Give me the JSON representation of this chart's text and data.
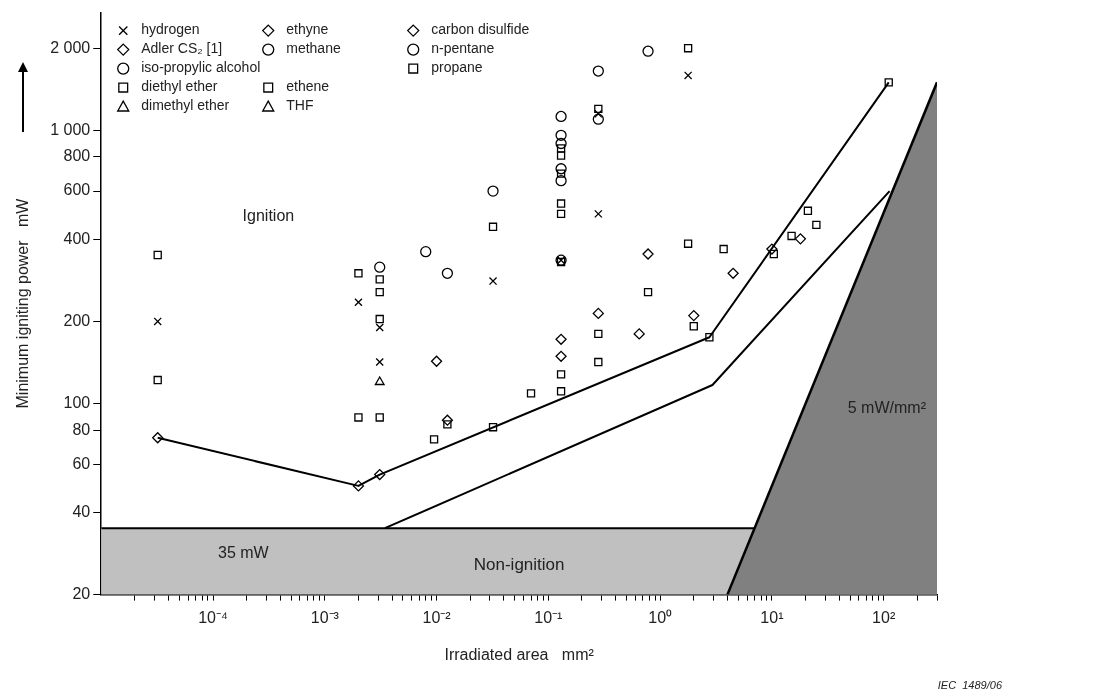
{
  "chart_data": {
    "type": "scatter",
    "xlabel": "Irradiated area   mm²",
    "ylabel": "Minimum igniting power   mW",
    "log": "xy",
    "grid": false,
    "legend": "top left",
    "xlim": [
      1e-05,
      300
    ],
    "ylim": [
      20,
      2700
    ],
    "xticks": [
      {
        "value": 2e-05,
        "label": null
      },
      {
        "value": 3e-05,
        "label": null
      },
      {
        "value": 4e-05,
        "label": null
      },
      {
        "value": 5e-05,
        "label": null
      },
      {
        "value": 6e-05,
        "label": null
      },
      {
        "value": 7e-05,
        "label": null
      },
      {
        "value": 8e-05,
        "label": null
      },
      {
        "value": 9e-05,
        "label": null
      },
      {
        "value": 0.0001,
        "label": "10⁻⁴"
      },
      {
        "value": 0.0002,
        "label": null
      },
      {
        "value": 0.0003,
        "label": null
      },
      {
        "value": 0.0004,
        "label": null
      },
      {
        "value": 0.0005,
        "label": null
      },
      {
        "value": 0.0006,
        "label": null
      },
      {
        "value": 0.0007,
        "label": null
      },
      {
        "value": 0.0008,
        "label": null
      },
      {
        "value": 0.0009,
        "label": null
      },
      {
        "value": 0.001,
        "label": "10⁻³"
      },
      {
        "value": 0.002,
        "label": null
      },
      {
        "value": 0.003,
        "label": null
      },
      {
        "value": 0.004,
        "label": null
      },
      {
        "value": 0.005,
        "label": null
      },
      {
        "value": 0.006,
        "label": null
      },
      {
        "value": 0.007,
        "label": null
      },
      {
        "value": 0.008,
        "label": null
      },
      {
        "value": 0.009,
        "label": null
      },
      {
        "value": 0.01,
        "label": "10⁻²"
      },
      {
        "value": 0.02,
        "label": null
      },
      {
        "value": 0.03,
        "label": null
      },
      {
        "value": 0.04,
        "label": null
      },
      {
        "value": 0.05,
        "label": null
      },
      {
        "value": 0.06,
        "label": null
      },
      {
        "value": 0.07,
        "label": null
      },
      {
        "value": 0.08,
        "label": null
      },
      {
        "value": 0.09,
        "label": null
      },
      {
        "value": 0.1,
        "label": "10⁻¹"
      },
      {
        "value": 0.2,
        "label": null
      },
      {
        "value": 0.3,
        "label": null
      },
      {
        "value": 0.4,
        "label": null
      },
      {
        "value": 0.5,
        "label": null
      },
      {
        "value": 0.6,
        "label": null
      },
      {
        "value": 0.7,
        "label": null
      },
      {
        "value": 0.8,
        "label": null
      },
      {
        "value": 0.9,
        "label": null
      },
      {
        "value": 1,
        "label": "10⁰"
      },
      {
        "value": 2,
        "label": null
      },
      {
        "value": 3,
        "label": null
      },
      {
        "value": 4,
        "label": null
      },
      {
        "value": 5,
        "label": null
      },
      {
        "value": 6,
        "label": null
      },
      {
        "value": 7,
        "label": null
      },
      {
        "value": 8,
        "label": null
      },
      {
        "value": 9,
        "label": null
      },
      {
        "value": 10,
        "label": "10¹"
      },
      {
        "value": 20,
        "label": null
      },
      {
        "value": 30,
        "label": null
      },
      {
        "value": 40,
        "label": null
      },
      {
        "value": 50,
        "label": null
      },
      {
        "value": 60,
        "label": null
      },
      {
        "value": 70,
        "label": null
      },
      {
        "value": 80,
        "label": null
      },
      {
        "value": 90,
        "label": null
      },
      {
        "value": 100,
        "label": "10²"
      },
      {
        "value": 200,
        "label": null
      },
      {
        "value": 300,
        "label": null
      }
    ],
    "yticks": [
      20,
      40,
      60,
      80,
      100,
      200,
      400,
      600,
      800,
      {
        "value": 1000,
        "label": "1 000"
      },
      {
        "value": 2000,
        "label": "2 000"
      }
    ],
    "series": [
      {
        "name": "hydrogen",
        "color": "#000000",
        "marker": "cross",
        "x": [
          3.2e-05,
          0.002,
          0.0031,
          0.0031,
          0.032,
          0.13,
          0.28,
          0.28,
          1.78
        ],
        "values": [
          200,
          235,
          190,
          142,
          281,
          335,
          1150,
          495,
          1590
        ]
      },
      {
        "name": "Adler CS₂ [1]",
        "color": "#000000",
        "marker": "diamond",
        "x": [
          0.65,
          2.0,
          4.5,
          10,
          18
        ],
        "values": [
          180,
          210,
          300,
          368,
          401
        ]
      },
      {
        "name": "iso-propylic alcohol",
        "color": "#000000",
        "marker": "circle",
        "x": [
          0.13
        ],
        "values": [
          655
        ]
      },
      {
        "name": "diethyl ether",
        "color": "#000000",
        "marker": "square",
        "x": [
          3.2e-05,
          0.002,
          0.0031,
          0.0095,
          0.0125,
          0.032,
          0.07,
          0.13,
          0.13,
          0.28,
          0.28,
          0.78,
          1.78,
          2.0,
          2.76,
          3.7,
          10.4,
          15,
          21,
          25,
          111
        ],
        "values": [
          122,
          89,
          89,
          74,
          84,
          82,
          109,
          128,
          111,
          180,
          142,
          256,
          385,
          192,
          175,
          368,
          353,
          411,
          508,
          451,
          1500
        ]
      },
      {
        "name": "dimethyl ether",
        "color": "#000000",
        "marker": "triangle",
        "x": [
          0.0031
        ],
        "values": [
          120
        ]
      },
      {
        "name": "ethyne",
        "color": "#000000",
        "marker": "diamond",
        "x": [
          0.01,
          0.13
        ],
        "values": [
          143,
          172
        ]
      },
      {
        "name": "methane",
        "color": "#000000",
        "marker": "circle",
        "x": [
          0.008,
          0.032,
          0.13,
          0.13,
          0.28
        ],
        "values": [
          360,
          600,
          1125,
          960,
          1650
        ]
      },
      {
        "name": "ethene",
        "color": "#000000",
        "marker": "square",
        "x": [
          0.0031,
          0.13,
          0.13,
          1.78
        ],
        "values": [
          204,
          540,
          495,
          2000
        ]
      },
      {
        "name": "THF",
        "color": "#000000",
        "marker": "triangle"
      },
      {
        "name": "carbon disulfide",
        "color": "#000000",
        "marker": "diamond",
        "x": [
          3.2e-05,
          0.002,
          0.0031,
          0.0125,
          0.13,
          0.28,
          0.78
        ],
        "values": [
          75,
          50,
          55,
          87,
          149,
          214,
          353
        ]
      },
      {
        "name": "n-pentane",
        "color": "#000000",
        "marker": "circle",
        "x": [
          0.0031,
          0.0125,
          0.13,
          0.13,
          0.13,
          0.28,
          0.78
        ],
        "values": [
          316,
          300,
          896,
          724,
          335,
          1100,
          1950
        ]
      },
      {
        "name": "propane",
        "color": "#000000",
        "marker": "square",
        "x": [
          3.2e-05,
          0.002,
          0.0031,
          0.0031,
          0.032,
          0.13,
          0.13,
          0.13,
          0.13,
          0.28
        ],
        "values": [
          350,
          300,
          285,
          256,
          444,
          860,
          809,
          695,
          330,
          1200
        ]
      },
      {
        "type": "line",
        "color": "#000000",
        "marker": "none",
        "x": [
          3.2e-05,
          0.002,
          0.0031,
          2.76,
          111
        ],
        "values": [
          75,
          50,
          55,
          175,
          1500
        ]
      },
      {
        "type": "line",
        "color": "#000000",
        "marker": "none",
        "x": [
          0.00345,
          2.94,
          113
        ],
        "values": [
          35,
          117,
          600
        ]
      },
      {
        "type": "line",
        "color": "#000000",
        "marker": "none",
        "x": [
          1e-05,
          7
        ],
        "values": [
          35,
          35
        ]
      },
      {
        "type": "area",
        "color": "#808080",
        "marker": "none",
        "x": [
          4,
          300
        ],
        "values": [
          20,
          1500
        ]
      }
    ],
    "bands": [
      {
        "axis": "y",
        "from": 20,
        "to": 35,
        "label": "Non-ignition",
        "color": "#c0c0c0"
      }
    ],
    "annotations": [
      "Ignition",
      "35 mW",
      "5 mW/mm²",
      "IEC  1489/06"
    ]
  }
}
